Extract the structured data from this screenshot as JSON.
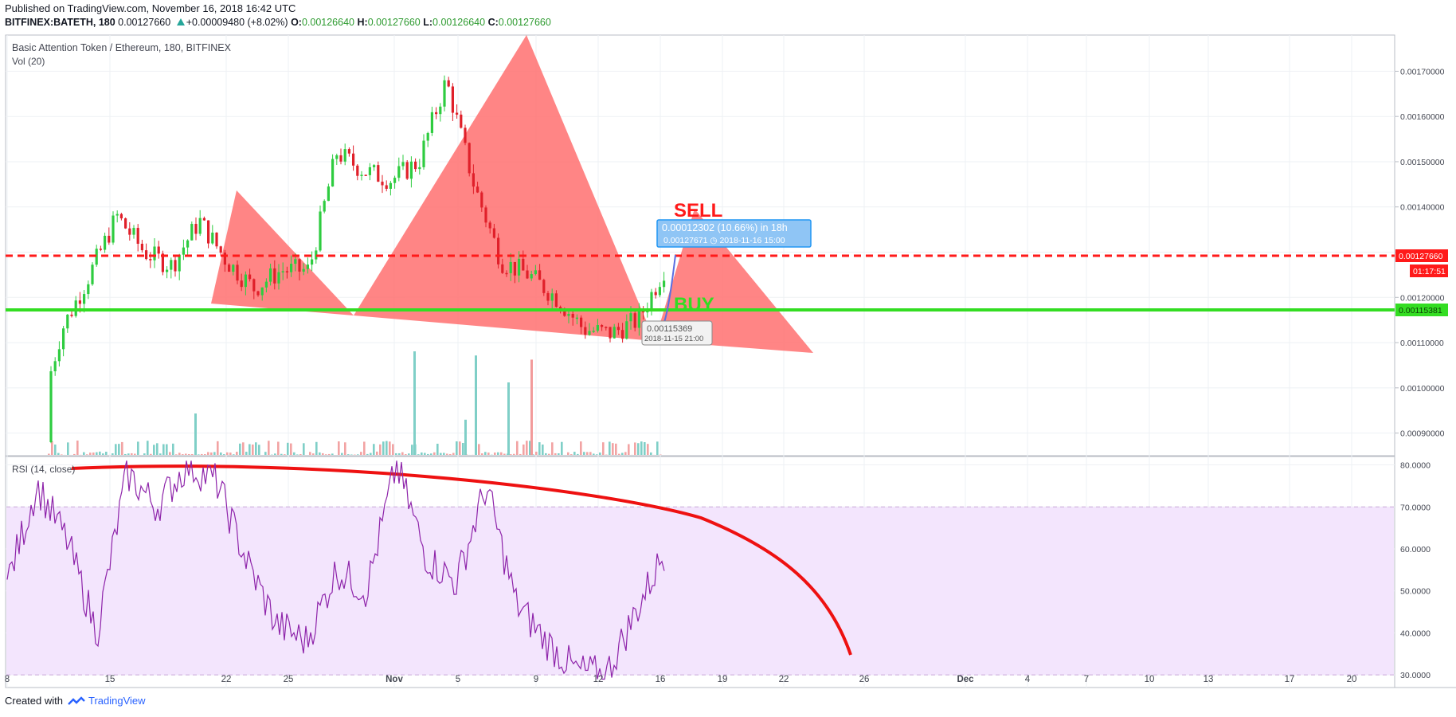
{
  "header": {
    "published": "Published on TradingView.com, November 16, 2018 16:42 UTC",
    "symbol": "BITFINEX:BATETH, 180",
    "last": "0.00127660",
    "change": "+0.00009480 (+8.02%)",
    "o_label": "O:",
    "o_value": "0.00126640",
    "h_label": "H:",
    "h_value": "0.00127660",
    "l_label": "L:",
    "l_value": "0.00126640",
    "c_label": "C:",
    "c_value": "0.00127660"
  },
  "pane": {
    "title": "Basic Attention Token / Ethereum, 180, BITFINEX",
    "vol_label": "Vol (20)",
    "rsi_label": "RSI (14, close)"
  },
  "annotations": {
    "sell": "SELL",
    "buy": "BUY",
    "measure_line1": "0.00012302 (10.66%) in 18h",
    "measure_line2": "0.00127671  ◷ 2018-11-16  15:00",
    "low_price": "0.00115369",
    "low_time": "2018-11-15 21:00",
    "price_tag_red": "0.00127660",
    "countdown_tag": "01:17:51",
    "price_tag_green": "0.00115381"
  },
  "colors": {
    "bull": "#2ecc40",
    "bear": "#e0202a",
    "pattern_fill": "#ff6b6b",
    "rsi_line": "#8e24aa",
    "rsi_band": "#f3e5fd",
    "sell_line": "#ff1a1a",
    "buy_line": "#33dd22",
    "grid": "#eef1f4"
  },
  "chart_data": [
    {
      "type": "candlestick",
      "title": "Basic Attention Token / Ethereum, 180, BITFINEX",
      "ylim": [
        0.00085,
        0.00178
      ],
      "y_ticks": [
        "0.00170000",
        "0.00160000",
        "0.00150000",
        "0.00140000",
        "0.00130000",
        "0.00120000",
        "0.00110000",
        "0.00100000",
        "0.00090000"
      ],
      "x_ticks": [
        "8",
        "15",
        "22",
        "25",
        "Nov",
        "5",
        "9",
        "12",
        "16",
        "19",
        "22",
        "26",
        "Dec",
        "4",
        "7",
        "10",
        "13",
        "17",
        "20"
      ],
      "close_path": [
        [
          "8",
          0.00088
        ],
        [
          "15",
          0.0009
        ],
        [
          "18",
          0.00113
        ],
        [
          "21",
          0.00125
        ],
        [
          "22",
          0.00138
        ],
        [
          "23",
          0.0013
        ],
        [
          "24",
          0.00127
        ],
        [
          "25",
          0.00137
        ],
        [
          "27",
          0.00128
        ],
        [
          "29",
          0.00122
        ],
        [
          "Oct 31",
          0.00126
        ],
        [
          "Nov 1",
          0.00126
        ],
        [
          "2",
          0.00152
        ],
        [
          "4",
          0.00148
        ],
        [
          "6",
          0.00146
        ],
        [
          "7",
          0.0015
        ],
        [
          "8",
          0.00168
        ],
        [
          "9",
          0.00145
        ],
        [
          "10",
          0.00128
        ],
        [
          "11",
          0.00125
        ],
        [
          "12",
          0.0012
        ],
        [
          "13",
          0.00113
        ],
        [
          "14",
          0.00112
        ],
        [
          "15",
          0.00115
        ],
        [
          "16",
          0.00127
        ]
      ],
      "horizontal_lines": [
        {
          "label": "SELL",
          "value": 0.0012766
        },
        {
          "label": "BUY",
          "value": 0.00115381
        }
      ]
    },
    {
      "type": "bar",
      "title": "Vol (20)",
      "note": "volume histogram, relative heights",
      "peaks": [
        [
          "Nov 2",
          1.0
        ],
        [
          "Nov 6",
          0.96
        ],
        [
          "Nov 8",
          0.92
        ],
        [
          "Nov 7",
          0.7
        ],
        [
          "Oct 19",
          0.4
        ],
        [
          "Nov 5",
          0.34
        ]
      ]
    },
    {
      "type": "line",
      "title": "RSI (14, close)",
      "ylim": [
        27,
        82
      ],
      "y_ticks": [
        "80.0000",
        "70.0000",
        "60.0000",
        "50.0000",
        "40.0000",
        "30.0000"
      ],
      "band": [
        30,
        70
      ],
      "values_path": [
        [
          "8",
          52
        ],
        [
          "10",
          75
        ],
        [
          "12",
          62
        ],
        [
          "15",
          40
        ],
        [
          "17",
          78
        ],
        [
          "19",
          70
        ],
        [
          "21",
          80
        ],
        [
          "23",
          76
        ],
        [
          "25",
          57
        ],
        [
          "27",
          42
        ],
        [
          "29",
          38
        ],
        [
          "Oct 31",
          55
        ],
        [
          "Nov 1",
          50
        ],
        [
          "2",
          80
        ],
        [
          "4",
          58
        ],
        [
          "6",
          52
        ],
        [
          "8",
          75
        ],
        [
          "9",
          47
        ],
        [
          "11",
          38
        ],
        [
          "13",
          31
        ],
        [
          "14",
          30
        ],
        [
          "15",
          45
        ],
        [
          "16",
          60
        ]
      ]
    }
  ]
}
